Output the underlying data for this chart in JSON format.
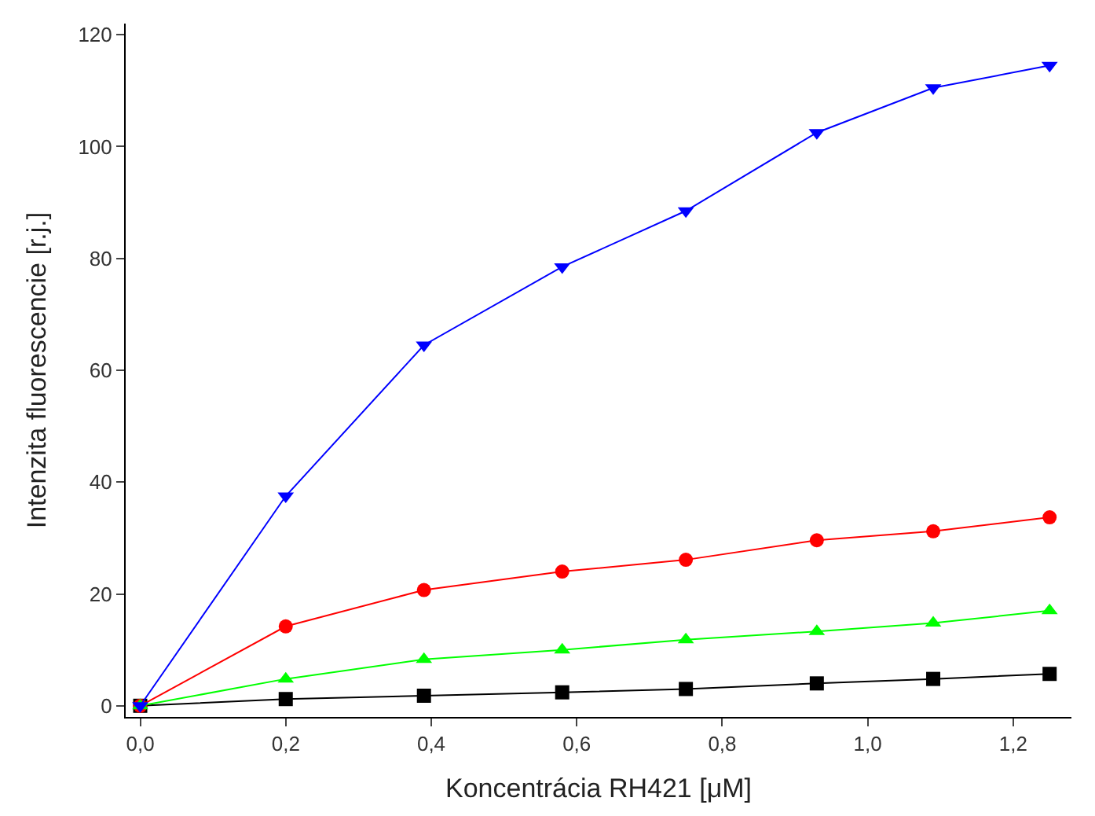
{
  "chart_data": {
    "type": "line",
    "xlabel": "Koncentrácia RH421 [μM]",
    "ylabel": "Intenzita fluorescencie [r.j.]",
    "x": [
      0,
      0.2,
      0.39,
      0.58,
      0.75,
      0.93,
      1.09,
      1.25
    ],
    "series": [
      {
        "color": "#000000",
        "marker": "square",
        "values": [
          0,
          1.2,
          1.8,
          2.4,
          3,
          4,
          4.8,
          5.7
        ]
      },
      {
        "color": "#ff0000",
        "marker": "circle",
        "values": [
          0,
          14.2,
          20.7,
          24,
          26.1,
          29.6,
          31.2,
          33.7
        ]
      },
      {
        "color": "#00ff00",
        "marker": "triangle",
        "values": [
          0,
          4.8,
          8.3,
          10,
          11.8,
          13.3,
          14.8,
          17
        ]
      },
      {
        "color": "#0000ff",
        "marker": "triangle-down",
        "values": [
          0,
          37.5,
          64.5,
          78.5,
          88.5,
          102.5,
          110.5,
          114.5
        ]
      }
    ],
    "xlim": [
      -0.02,
      1.28
    ],
    "ylim": [
      -2,
      122
    ],
    "xticks": [
      {
        "value": 0,
        "label": "0,0"
      },
      {
        "value": 0.2,
        "label": "0,2"
      },
      {
        "value": 0.4,
        "label": "0,4"
      },
      {
        "value": 0.6,
        "label": "0,6"
      },
      {
        "value": 0.8,
        "label": "0,8"
      },
      {
        "value": 1.0,
        "label": "1,0"
      },
      {
        "value": 1.2,
        "label": "1,2"
      }
    ],
    "yticks": [
      0,
      20,
      40,
      60,
      80,
      100,
      120
    ],
    "line_style": "solid"
  }
}
